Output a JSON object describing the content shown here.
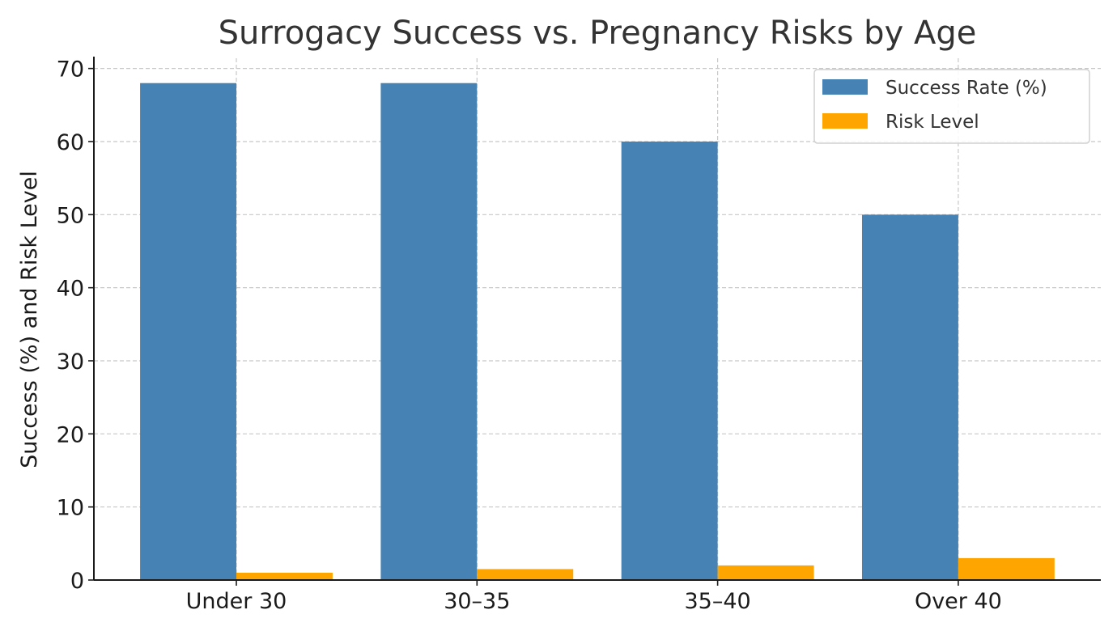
{
  "chart_data": {
    "type": "bar",
    "title": "Surrogacy Success vs. Pregnancy Risks by Age",
    "xlabel": "",
    "ylabel": "Success (%) and Risk Level",
    "categories": [
      "Under 30",
      "30–35",
      "35–40",
      "Over 40"
    ],
    "series": [
      {
        "name": "Success Rate (%)",
        "values": [
          68,
          68,
          60,
          50
        ],
        "color": "#4682b4"
      },
      {
        "name": "Risk Level",
        "values": [
          1,
          1.5,
          2,
          3
        ],
        "color": "#ffa500"
      }
    ],
    "ylim": [
      0,
      71.4
    ],
    "yticks": [
      0,
      10,
      20,
      30,
      40,
      50,
      60,
      70
    ],
    "grid": true,
    "legend_position": "top-right"
  }
}
